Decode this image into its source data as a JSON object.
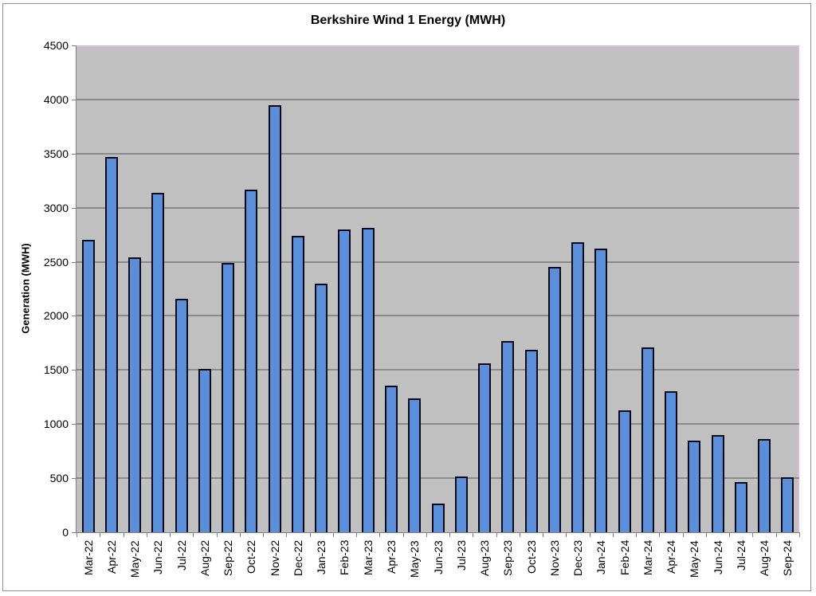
{
  "chart_data": {
    "type": "bar",
    "title": "Berkshire Wind 1 Energy (MWH)",
    "xlabel": "",
    "ylabel": "Generation (MWH)",
    "ylim": [
      0,
      4500
    ],
    "yticks": [
      0,
      500,
      1000,
      1500,
      2000,
      2500,
      3000,
      3500,
      4000,
      4500
    ],
    "grid": true,
    "legend": "none",
    "categories": [
      "Mar-22",
      "Apr-22",
      "May-22",
      "Jun-22",
      "Jul-22",
      "Aug-22",
      "Sep-22",
      "Oct-22",
      "Nov-22",
      "Dec-22",
      "Jan-23",
      "Feb-23",
      "Mar-23",
      "Apr-23",
      "May-23",
      "Jun-23",
      "Jul-23",
      "Aug-23",
      "Sep-23",
      "Oct-23",
      "Nov-23",
      "Dec-23",
      "Jan-24",
      "Feb-24",
      "Mar-24",
      "Apr-24",
      "May-24",
      "Jun-24",
      "Jul-24",
      "Aug-24",
      "Sep-24"
    ],
    "series": [
      {
        "name": "Generation (MWH)",
        "values": [
          2705,
          3470,
          2540,
          3135,
          2155,
          1510,
          2490,
          3170,
          3950,
          2740,
          2295,
          2800,
          2810,
          1355,
          1240,
          265,
          515,
          1560,
          1770,
          1685,
          2455,
          2680,
          2625,
          1125,
          1705,
          1305,
          850,
          900,
          465,
          865,
          510
        ]
      }
    ],
    "colors": {
      "bar_fill": "#5b8fd9",
      "bar_border": "#0a0a1a",
      "plot_background": "#c0c0c0",
      "gridline": "#8a8a8a",
      "plot_border": "#e2b6e2"
    }
  }
}
